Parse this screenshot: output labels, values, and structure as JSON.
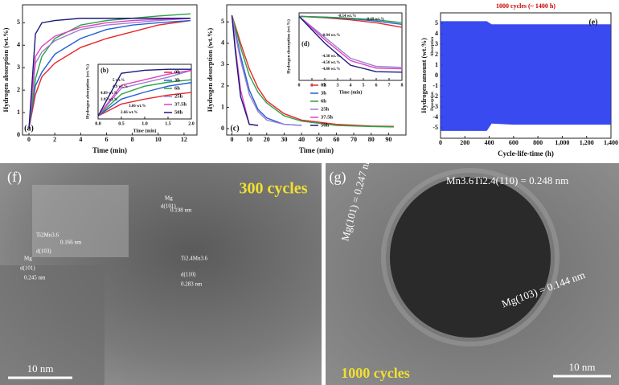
{
  "chart_data": [
    {
      "type": "line",
      "label": "(a)",
      "xlabel": "Time (min)",
      "ylabel": "Hydrogen absorption (wt.%)",
      "x": [
        0,
        0.5,
        1,
        2,
        4,
        6,
        8,
        10,
        12.5
      ],
      "xlim": [
        -0.5,
        13
      ],
      "xticks": [
        0,
        2,
        4,
        6,
        8,
        10,
        12
      ],
      "ylim": [
        0,
        5.8
      ],
      "yticks": [
        0,
        1,
        2,
        3,
        4,
        5
      ],
      "series": [
        {
          "color": "#e8262a",
          "values": [
            0.3,
            1.8,
            2.6,
            3.2,
            3.9,
            4.3,
            4.6,
            4.9,
            5.1
          ]
        },
        {
          "color": "#1f5fd8",
          "values": [
            0.3,
            2.2,
            2.8,
            3.6,
            4.3,
            4.7,
            4.9,
            5.0,
            5.1
          ]
        },
        {
          "color": "#2ea043",
          "values": [
            0.3,
            2.5,
            3.5,
            4.3,
            4.9,
            5.1,
            5.2,
            5.3,
            5.4
          ]
        },
        {
          "color": "#9a7fd0",
          "values": [
            0.3,
            3.2,
            3.7,
            4.2,
            4.7,
            4.9,
            5.0,
            5.1,
            5.2
          ]
        },
        {
          "color": "#e040c0",
          "values": [
            0.3,
            3.5,
            3.95,
            4.4,
            4.8,
            5.0,
            5.1,
            5.15,
            5.2
          ]
        },
        {
          "color": "#1a1a80",
          "values": [
            0.3,
            4.5,
            5.0,
            5.1,
            5.2,
            5.2,
            5.2,
            5.2,
            5.2
          ]
        }
      ]
    },
    {
      "type": "line",
      "label": "(b)",
      "xlabel": "Time (min)",
      "ylabel": "Hydrogen absorption (wt.%)",
      "legend": true,
      "x": [
        0,
        0.5,
        1,
        1.5,
        2
      ],
      "xlim": [
        0,
        2
      ],
      "xticks": [
        {
          "value": 0,
          "label": "0.0"
        },
        {
          "value": 0.5,
          "label": "0.5"
        },
        {
          "value": 1,
          "label": "1.0"
        },
        {
          "value": 1.5,
          "label": "1.5"
        },
        {
          "value": 2,
          "label": "2.0"
        }
      ],
      "ylim": [
        0,
        5.5
      ],
      "annotations": [
        "5 wt.%",
        "4.9 wt.%",
        "4.89 wt.%",
        "3.95 wt.%",
        "3.66 wt.%",
        "2.66 wt.%"
      ],
      "series": [
        {
          "name": "0h",
          "color": "#e8262a",
          "values": [
            0.3,
            1.5,
            2.0,
            2.4,
            2.66
          ]
        },
        {
          "name": "3h",
          "color": "#1f5fd8",
          "values": [
            0.3,
            2.0,
            2.7,
            3.3,
            3.66
          ]
        },
        {
          "name": "6h",
          "color": "#2ea043",
          "values": [
            0.3,
            2.5,
            3.3,
            3.7,
            3.95
          ]
        },
        {
          "name": "25h",
          "color": "#9a7fd0",
          "values": [
            0.3,
            3.1,
            3.66,
            4.2,
            4.89
          ]
        },
        {
          "name": "37.5h",
          "color": "#e040c0",
          "values": [
            0.3,
            3.4,
            3.95,
            4.5,
            4.9
          ]
        },
        {
          "name": "50h",
          "color": "#1a1a80",
          "values": [
            0.3,
            4.6,
            4.9,
            5.0,
            5.0
          ]
        }
      ]
    },
    {
      "type": "line",
      "label": "(c)",
      "xlabel": "Time (min)",
      "ylabel": "Hydrogen desorption (wt.%)",
      "x": [
        0,
        2,
        5,
        10,
        15,
        20,
        30,
        40,
        60,
        80,
        93
      ],
      "xlim": [
        -3,
        100
      ],
      "xticks": [
        0,
        10,
        20,
        30,
        40,
        50,
        60,
        70,
        80,
        90
      ],
      "ylim": [
        -0.3,
        5.8
      ],
      "yticks": [
        0,
        1,
        2,
        3,
        4,
        5
      ],
      "series": [
        {
          "color": "#e8262a",
          "values": [
            5.3,
            4.8,
            4.0,
            2.8,
            1.9,
            1.3,
            0.7,
            0.4,
            0.2,
            0.12,
            0.1
          ]
        },
        {
          "color": "#1f5fd8",
          "values": [
            5.3,
            4.5,
            3.4,
            1.8,
            0.9,
            0.5,
            0.2,
            0.15,
            null,
            null,
            null
          ]
        },
        {
          "color": "#2ea043",
          "values": [
            5.3,
            4.7,
            3.8,
            2.5,
            1.7,
            1.2,
            0.6,
            0.35,
            0.15,
            0.1,
            0.08
          ]
        },
        {
          "color": "#9a7fd0",
          "values": [
            5.3,
            4.4,
            3.2,
            1.6,
            0.8,
            0.4,
            0.2,
            0.15,
            null,
            null,
            null
          ]
        },
        {
          "color": "#e040c0",
          "values": [
            5.3,
            3.8,
            1.8,
            0.2,
            0.15,
            null,
            null,
            null,
            null,
            null,
            null
          ]
        },
        {
          "color": "#1a1a80",
          "values": [
            5.3,
            3.6,
            1.5,
            0.2,
            0.15,
            null,
            null,
            null,
            null,
            null,
            null
          ]
        }
      ]
    },
    {
      "type": "line",
      "label": "(d)",
      "xlabel": "Time (min)",
      "ylabel": "Hydrogen desorption (wt.%)",
      "legend": true,
      "x": [
        0,
        2,
        4,
        6,
        8
      ],
      "xlim": [
        0,
        8
      ],
      "xticks": [
        0,
        1,
        2,
        3,
        4,
        5,
        6,
        7,
        8
      ],
      "ylim": [
        -5.5,
        0.3
      ],
      "annotations": [
        "-0.54 wt.%",
        "-0.69 wt.%",
        "-0.94 wt.%",
        "-4.38 wt.%",
        "-4.50 wt.%",
        "-4.80 wt.%"
      ],
      "series": [
        {
          "name": "0h",
          "color": "#e8262a",
          "values": [
            0,
            -0.12,
            -0.3,
            -0.55,
            -0.94
          ]
        },
        {
          "name": "3h",
          "color": "#1f5fd8",
          "values": [
            0,
            -0.08,
            -0.2,
            -0.4,
            -0.69
          ]
        },
        {
          "name": "6h",
          "color": "#2ea043",
          "values": [
            0,
            -0.06,
            -0.15,
            -0.3,
            -0.54
          ]
        },
        {
          "name": "25h",
          "color": "#9a7fd0",
          "values": [
            0,
            -1.8,
            -3.6,
            -4.3,
            -4.38
          ]
        },
        {
          "name": "37.5h",
          "color": "#e040c0",
          "values": [
            0,
            -2.0,
            -3.8,
            -4.45,
            -4.5
          ]
        },
        {
          "name": "50h",
          "color": "#1a1a80",
          "values": [
            0,
            -2.3,
            -4.2,
            -4.75,
            -4.8
          ]
        }
      ]
    },
    {
      "type": "area",
      "label": "(e)",
      "title": "1000 cycles (~ 1400 h)",
      "xlabel": "Cycle-life-time (h)",
      "ylabel": "Hydrogen amount (wt.%)",
      "annotations": [
        "Absorption",
        "Desorption"
      ],
      "x": [
        0,
        200,
        380,
        420,
        600,
        800,
        1000,
        1200,
        1400
      ],
      "xlim": [
        0,
        1400
      ],
      "xticks": [
        0,
        200,
        400,
        600,
        800,
        {
          "value": 1000,
          "label": "1,000"
        },
        {
          "value": 1200,
          "label": "1,200"
        },
        {
          "value": 1400,
          "label": "1,400"
        }
      ],
      "ylim": [
        -6,
        6
      ],
      "yticks": [
        -5,
        -4,
        -3,
        -2,
        -1,
        0,
        1,
        2,
        3,
        4,
        5
      ],
      "series": [
        {
          "color": "#2436f0",
          "values": [
            5.2,
            5.2,
            5.2,
            4.9,
            4.9,
            4.9,
            4.9,
            4.9,
            4.9
          ]
        },
        {
          "color": "#2436f0",
          "values": [
            -5.3,
            -5.3,
            -5.3,
            -4.6,
            -4.7,
            -4.7,
            -4.7,
            -4.7,
            -4.7
          ]
        }
      ]
    }
  ],
  "images": [
    {
      "label": "(f)",
      "caption": "300 cycles",
      "scale_bar": "10 nm",
      "annotations": [
        "Mg",
        "d(101)",
        "0.198 nm",
        "Ti2Mn3.6",
        "d(103)",
        "0.166 nm",
        "Ti2.4Mn3.6",
        "d(110)",
        "0.283 nm",
        "Mg",
        "d(101)",
        "0.245 nm"
      ]
    },
    {
      "label": "(g)",
      "caption": "1000 cycles",
      "scale_bar": "10 nm",
      "annotations": [
        "Mg(101) = 0.247 nm",
        "Mn3.6Ti2.4(110) = 0.248 nm",
        "Mg(103) = 0.144 nm"
      ]
    }
  ]
}
